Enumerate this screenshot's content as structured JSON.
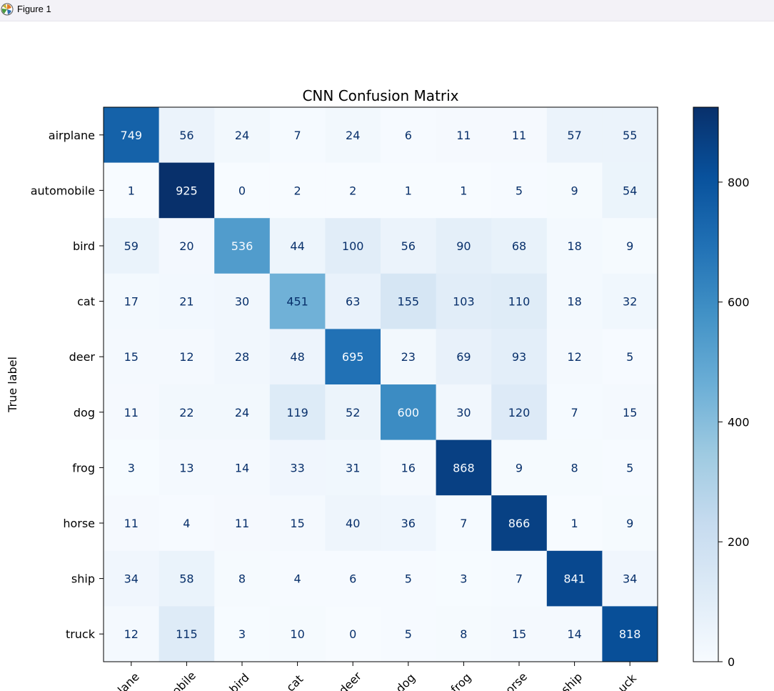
{
  "window": {
    "title": "Figure 1",
    "icon": "matplotlib-icon"
  },
  "chart_data": {
    "type": "heatmap",
    "title": "CNN Confusion Matrix",
    "ylabel": "True label",
    "xlabel": "",
    "row_labels": [
      "airplane",
      "automobile",
      "bird",
      "cat",
      "deer",
      "dog",
      "frog",
      "horse",
      "ship",
      "truck"
    ],
    "col_tick_labels": [
      "lane",
      "obile",
      "bird",
      "cat",
      "deer",
      "dog",
      "frog",
      "orse",
      "ship",
      "uck"
    ],
    "matrix": [
      [
        749,
        56,
        24,
        7,
        24,
        6,
        11,
        11,
        57,
        55
      ],
      [
        1,
        925,
        0,
        2,
        2,
        1,
        1,
        5,
        9,
        54
      ],
      [
        59,
        20,
        536,
        44,
        100,
        56,
        90,
        68,
        18,
        9
      ],
      [
        17,
        21,
        30,
        451,
        63,
        155,
        103,
        110,
        18,
        32
      ],
      [
        15,
        12,
        28,
        48,
        695,
        23,
        69,
        93,
        12,
        5
      ],
      [
        11,
        22,
        24,
        119,
        52,
        600,
        30,
        120,
        7,
        15
      ],
      [
        3,
        13,
        14,
        33,
        31,
        16,
        868,
        9,
        8,
        5
      ],
      [
        11,
        4,
        11,
        15,
        40,
        36,
        7,
        866,
        1,
        9
      ],
      [
        34,
        58,
        8,
        4,
        6,
        5,
        3,
        7,
        841,
        34
      ],
      [
        12,
        115,
        3,
        10,
        0,
        5,
        8,
        15,
        14,
        818
      ]
    ],
    "colormap": "Blues",
    "vmin": 0,
    "vmax": 925,
    "colorbar_ticks": [
      0,
      200,
      400,
      600,
      800
    ],
    "colors": {
      "low": "#f7fbff",
      "high": "#08306b",
      "text_dark": "#08306b",
      "text_light": "#f7fbff"
    }
  }
}
